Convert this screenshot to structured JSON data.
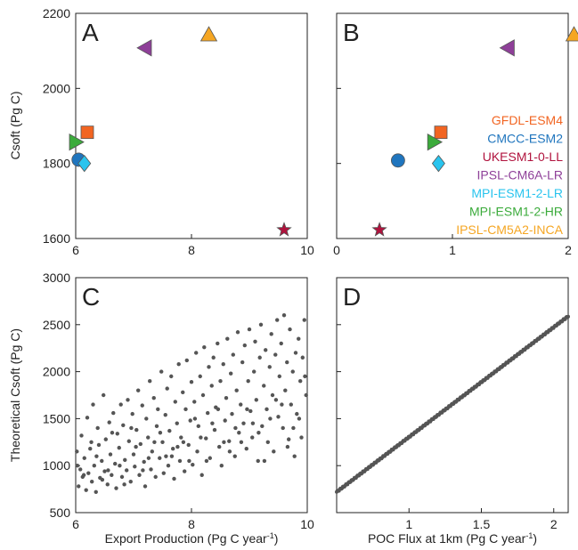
{
  "chart_data": [
    {
      "panel": "A",
      "type": "scatter",
      "ylabel": "Csoft (Pg C)",
      "xlabel": "",
      "xlim": [
        6,
        10
      ],
      "ylim": [
        1600,
        2200
      ],
      "xticks": [
        6,
        8,
        10
      ],
      "yticks": [
        1600,
        1800,
        2000,
        2200
      ],
      "series": [
        {
          "name": "GFDL-ESM4",
          "marker": "square",
          "color": "#f26522",
          "x": [
            6.2
          ],
          "y": [
            1883
          ]
        },
        {
          "name": "CMCC-ESM2",
          "marker": "circle",
          "color": "#1f75be",
          "x": [
            6.05
          ],
          "y": [
            1810
          ]
        },
        {
          "name": "UKESM1-0-LL",
          "marker": "star",
          "color": "#b0123d",
          "x": [
            9.6
          ],
          "y": [
            1623
          ]
        },
        {
          "name": "IPSL-CM6A-LR",
          "marker": "triangle-left",
          "color": "#8e3f98",
          "x": [
            7.2
          ],
          "y": [
            2108
          ]
        },
        {
          "name": "MPI-ESM1-2-LR",
          "marker": "diamond",
          "color": "#29c4ee",
          "x": [
            6.15
          ],
          "y": [
            1800
          ]
        },
        {
          "name": "MPI-ESM1-2-HR",
          "marker": "triangle-right",
          "color": "#3bab3b",
          "x": [
            6.0
          ],
          "y": [
            1857
          ]
        },
        {
          "name": "IPSL-CM5A2-INCA",
          "marker": "triangle-up",
          "color": "#f5a623",
          "x": [
            8.3
          ],
          "y": [
            2143
          ]
        }
      ]
    },
    {
      "panel": "B",
      "type": "scatter",
      "xlabel": "",
      "ylabel": "",
      "xlim": [
        0,
        2
      ],
      "ylim": [
        1600,
        2200
      ],
      "xticks": [
        0,
        1,
        2
      ],
      "series": [
        {
          "name": "GFDL-ESM4",
          "marker": "square",
          "color": "#f26522",
          "x": [
            0.9
          ],
          "y": [
            1883
          ]
        },
        {
          "name": "CMCC-ESM2",
          "marker": "circle",
          "color": "#1f75be",
          "x": [
            0.53
          ],
          "y": [
            1808
          ]
        },
        {
          "name": "UKESM1-0-LL",
          "marker": "star",
          "color": "#b0123d",
          "x": [
            0.37
          ],
          "y": [
            1623
          ]
        },
        {
          "name": "IPSL-CM6A-LR",
          "marker": "triangle-left",
          "color": "#8e3f98",
          "x": [
            1.48
          ],
          "y": [
            2108
          ]
        },
        {
          "name": "MPI-ESM1-2-LR",
          "marker": "diamond",
          "color": "#29c4ee",
          "x": [
            0.88
          ],
          "y": [
            1800
          ]
        },
        {
          "name": "MPI-ESM1-2-HR",
          "marker": "triangle-right",
          "color": "#3bab3b",
          "x": [
            0.84
          ],
          "y": [
            1857
          ]
        },
        {
          "name": "IPSL-CM5A2-INCA",
          "marker": "triangle-up",
          "color": "#f5a623",
          "x": [
            2.05
          ],
          "y": [
            2143
          ]
        }
      ],
      "legend": [
        "GFDL-ESM4",
        "CMCC-ESM2",
        "UKESM1-0-LL",
        "IPSL-CM6A-LR",
        "MPI-ESM1-2-LR",
        "MPI-ESM1-2-HR",
        "IPSL-CM5A2-INCA"
      ],
      "legend_position": "right"
    },
    {
      "panel": "C",
      "type": "scatter",
      "xlabel": "Export Production (Pg C year⁻¹)",
      "ylabel": "Theoretical Csoft (Pg C)",
      "xlim": [
        6,
        10
      ],
      "ylim": [
        500,
        3000
      ],
      "xticks": [
        6,
        8,
        10
      ],
      "yticks": [
        500,
        1000,
        1500,
        2000,
        2500,
        3000
      ],
      "color": "#555555",
      "points": [
        [
          6.02,
          1150
        ],
        [
          6.05,
          780
        ],
        [
          6.08,
          960
        ],
        [
          6.1,
          1320
        ],
        [
          6.12,
          880
        ],
        [
          6.15,
          1080
        ],
        [
          6.18,
          740
        ],
        [
          6.2,
          1510
        ],
        [
          6.22,
          920
        ],
        [
          6.25,
          1180
        ],
        [
          6.28,
          830
        ],
        [
          6.3,
          1650
        ],
        [
          6.32,
          1000
        ],
        [
          6.35,
          720
        ],
        [
          6.38,
          1400
        ],
        [
          6.4,
          1220
        ],
        [
          6.42,
          870
        ],
        [
          6.45,
          1050
        ],
        [
          6.48,
          1750
        ],
        [
          6.5,
          940
        ],
        [
          6.52,
          1280
        ],
        [
          6.55,
          800
        ],
        [
          6.58,
          1460
        ],
        [
          6.6,
          1120
        ],
        [
          6.62,
          900
        ],
        [
          6.65,
          1560
        ],
        [
          6.68,
          1020
        ],
        [
          6.7,
          760
        ],
        [
          6.72,
          1340
        ],
        [
          6.75,
          1190
        ],
        [
          6.78,
          1650
        ],
        [
          6.8,
          880
        ],
        [
          6.82,
          1430
        ],
        [
          6.85,
          1060
        ],
        [
          6.88,
          950
        ],
        [
          6.9,
          1700
        ],
        [
          6.92,
          1260
        ],
        [
          6.95,
          830
        ],
        [
          6.98,
          1550
        ],
        [
          7.0,
          1120
        ],
        [
          7.02,
          990
        ],
        [
          7.05,
          1380
        ],
        [
          7.08,
          1800
        ],
        [
          7.1,
          900
        ],
        [
          7.12,
          1230
        ],
        [
          7.15,
          1640
        ],
        [
          7.18,
          1040
        ],
        [
          7.2,
          780
        ],
        [
          7.22,
          1500
        ],
        [
          7.25,
          1300
        ],
        [
          7.28,
          1900
        ],
        [
          7.3,
          960
        ],
        [
          7.32,
          1150
        ],
        [
          7.35,
          1720
        ],
        [
          7.38,
          880
        ],
        [
          7.4,
          1420
        ],
        [
          7.42,
          1600
        ],
        [
          7.45,
          1080
        ],
        [
          7.48,
          2000
        ],
        [
          7.5,
          1250
        ],
        [
          7.52,
          920
        ],
        [
          7.55,
          1540
        ],
        [
          7.58,
          1820
        ],
        [
          7.6,
          1000
        ],
        [
          7.62,
          1370
        ],
        [
          7.65,
          1950
        ],
        [
          7.68,
          1180
        ],
        [
          7.7,
          860
        ],
        [
          7.72,
          1680
        ],
        [
          7.75,
          1450
        ],
        [
          7.78,
          2080
        ],
        [
          7.8,
          1050
        ],
        [
          7.82,
          1300
        ],
        [
          7.85,
          1780
        ],
        [
          7.88,
          940
        ],
        [
          7.9,
          1600
        ],
        [
          7.92,
          2120
        ],
        [
          7.95,
          1220
        ],
        [
          7.98,
          1480
        ],
        [
          8.0,
          1890
        ],
        [
          8.02,
          1010
        ],
        [
          8.05,
          1680
        ],
        [
          8.08,
          2200
        ],
        [
          8.1,
          1150
        ],
        [
          8.12,
          1420
        ],
        [
          8.15,
          1950
        ],
        [
          8.18,
          900
        ],
        [
          8.2,
          1750
        ],
        [
          8.22,
          2260
        ],
        [
          8.25,
          1290
        ],
        [
          8.28,
          1560
        ],
        [
          8.3,
          2050
        ],
        [
          8.32,
          1080
        ],
        [
          8.35,
          1850
        ],
        [
          8.38,
          2150
        ],
        [
          8.4,
          1380
        ],
        [
          8.42,
          1620
        ],
        [
          8.45,
          2300
        ],
        [
          8.48,
          1200
        ],
        [
          8.5,
          1900
        ],
        [
          8.52,
          1000
        ],
        [
          8.55,
          2080
        ],
        [
          8.58,
          1480
        ],
        [
          8.6,
          1720
        ],
        [
          8.62,
          2350
        ],
        [
          8.65,
          1260
        ],
        [
          8.68,
          1980
        ],
        [
          8.7,
          1550
        ],
        [
          8.72,
          2180
        ],
        [
          8.75,
          1100
        ],
        [
          8.78,
          1800
        ],
        [
          8.8,
          2420
        ],
        [
          8.82,
          1350
        ],
        [
          8.85,
          1650
        ],
        [
          8.88,
          2100
        ],
        [
          8.9,
          1450
        ],
        [
          8.92,
          2280
        ],
        [
          8.95,
          1180
        ],
        [
          8.98,
          1900
        ],
        [
          9.0,
          2450
        ],
        [
          9.02,
          1580
        ],
        [
          9.05,
          1300
        ],
        [
          9.08,
          2000
        ],
        [
          9.1,
          2320
        ],
        [
          9.12,
          1700
        ],
        [
          9.15,
          1050
        ],
        [
          9.18,
          2150
        ],
        [
          9.2,
          2500
        ],
        [
          9.22,
          1420
        ],
        [
          9.25,
          1850
        ],
        [
          9.28,
          2230
        ],
        [
          9.3,
          1600
        ],
        [
          9.32,
          1250
        ],
        [
          9.35,
          2050
        ],
        [
          9.38,
          2400
        ],
        [
          9.4,
          1750
        ],
        [
          9.42,
          1150
        ],
        [
          9.45,
          2180
        ],
        [
          9.48,
          2550
        ],
        [
          9.5,
          1520
        ],
        [
          9.52,
          1950
        ],
        [
          9.55,
          2300
        ],
        [
          9.58,
          1400
        ],
        [
          9.6,
          2600
        ],
        [
          9.62,
          1800
        ],
        [
          9.65,
          2100
        ],
        [
          9.68,
          1280
        ],
        [
          9.7,
          2450
        ],
        [
          9.72,
          1650
        ],
        [
          9.75,
          2000
        ],
        [
          9.78,
          1100
        ],
        [
          9.8,
          2200
        ],
        [
          9.82,
          1550
        ],
        [
          9.85,
          2350
        ],
        [
          9.88,
          1900
        ],
        [
          9.9,
          1300
        ],
        [
          9.92,
          2150
        ],
        [
          9.95,
          2550
        ],
        [
          9.98,
          1750
        ],
        [
          6.03,
          1000
        ],
        [
          6.27,
          1250
        ],
        [
          6.46,
          850
        ],
        [
          6.63,
          1350
        ],
        [
          6.84,
          800
        ],
        [
          7.04,
          1200
        ],
        [
          7.26,
          1080
        ],
        [
          7.46,
          1350
        ],
        [
          7.66,
          1100
        ],
        [
          7.86,
          1250
        ],
        [
          8.06,
          1500
        ],
        [
          8.26,
          1050
        ],
        [
          8.46,
          1600
        ],
        [
          8.66,
          1150
        ],
        [
          8.86,
          1250
        ],
        [
          9.06,
          1450
        ],
        [
          9.26,
          1050
        ],
        [
          9.46,
          1700
        ],
        [
          9.66,
          1200
        ],
        [
          9.86,
          1500
        ],
        [
          6.14,
          900
        ],
        [
          6.36,
          1100
        ],
        [
          6.56,
          950
        ],
        [
          6.76,
          1000
        ],
        [
          6.96,
          1400
        ],
        [
          7.16,
          950
        ],
        [
          7.36,
          1250
        ],
        [
          7.56,
          1100
        ],
        [
          7.76,
          1200
        ],
        [
          7.96,
          1050
        ],
        [
          8.16,
          1300
        ],
        [
          8.36,
          1450
        ],
        [
          8.56,
          1250
        ],
        [
          8.76,
          1400
        ],
        [
          8.96,
          1600
        ],
        [
          9.16,
          1350
        ],
        [
          9.36,
          1500
        ],
        [
          9.56,
          1650
        ],
        [
          9.76,
          1400
        ],
        [
          9.96,
          1950
        ]
      ]
    },
    {
      "panel": "D",
      "type": "scatter",
      "xlabel": "POC Flux at 1km (Pg C year⁻¹)",
      "ylabel": "",
      "xlim": [
        0.5,
        2.1
      ],
      "ylim": [
        500,
        3000
      ],
      "xticks": [
        1,
        1.5,
        2
      ],
      "color": "#555555",
      "line": {
        "x0": 0.5,
        "y0": 720,
        "x1": 2.1,
        "y1": 2590
      },
      "point_count": 300
    }
  ],
  "panel_letters": {
    "a": "A",
    "b": "B",
    "c": "C",
    "d": "D"
  },
  "axis_titles": {
    "ab_y": "Csoft (Pg C)",
    "cd_y": "Theoretical Csoft (Pg C)",
    "c_x_main": "Export Production (Pg C year",
    "d_x_main": "POC Flux at 1km (Pg C year",
    "exp": "-1",
    "c_x_tail": ")",
    "d_x_tail": ")"
  }
}
